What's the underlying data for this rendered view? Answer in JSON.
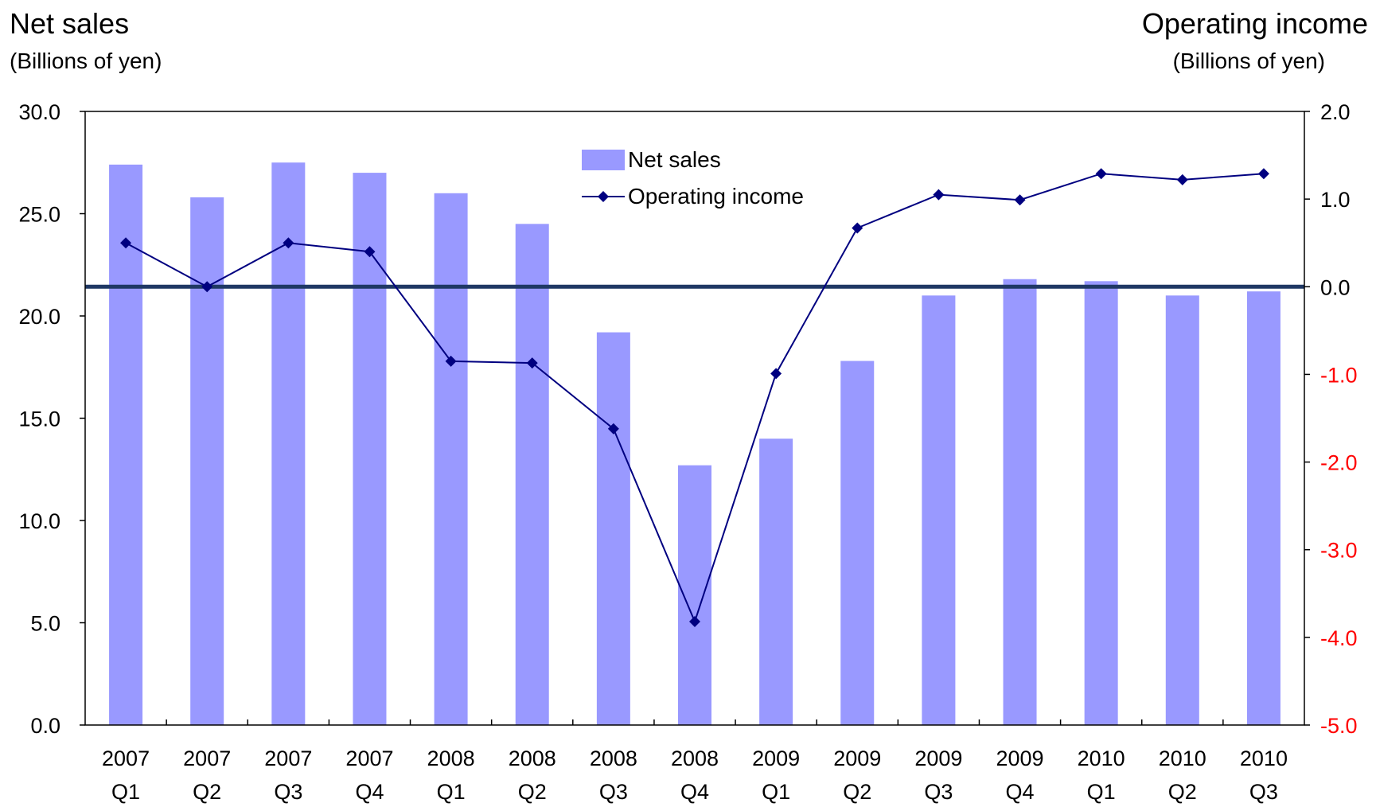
{
  "chart_data": {
    "type": "bar",
    "left_title": "Net sales",
    "left_unit": "(Billions of yen)",
    "right_title": "Operating income",
    "right_unit": "(Billions of yen)",
    "categories": [
      [
        "2007",
        "Q1"
      ],
      [
        "2007",
        "Q2"
      ],
      [
        "2007",
        "Q3"
      ],
      [
        "2007",
        "Q4"
      ],
      [
        "2008",
        "Q1"
      ],
      [
        "2008",
        "Q2"
      ],
      [
        "2008",
        "Q3"
      ],
      [
        "2008",
        "Q4"
      ],
      [
        "2009",
        "Q1"
      ],
      [
        "2009",
        "Q2"
      ],
      [
        "2009",
        "Q3"
      ],
      [
        "2009",
        "Q4"
      ],
      [
        "2010",
        "Q1"
      ],
      [
        "2010",
        "Q2"
      ],
      [
        "2010",
        "Q3"
      ]
    ],
    "series": [
      {
        "name": "Net sales",
        "type": "bar",
        "axis": "left",
        "color": "#9999ff",
        "values": [
          27.4,
          25.8,
          27.5,
          27.0,
          26.0,
          24.5,
          19.2,
          12.7,
          14.0,
          17.8,
          21.0,
          21.8,
          21.7,
          21.0,
          21.2
        ]
      },
      {
        "name": "Operating income",
        "type": "line",
        "axis": "right",
        "color": "#000080",
        "values": [
          0.5,
          0.0,
          0.5,
          0.4,
          -0.85,
          -0.87,
          -1.62,
          -3.82,
          -0.99,
          0.67,
          1.05,
          0.99,
          1.29,
          1.22,
          1.29
        ]
      }
    ],
    "left_axis": {
      "ylim": [
        0,
        30
      ],
      "ticks": [
        "0.0",
        "5.0",
        "10.0",
        "15.0",
        "20.0",
        "25.0",
        "30.0"
      ],
      "tick_color": "#000000"
    },
    "right_axis": {
      "ylim": [
        -5,
        2
      ],
      "ticks": [
        "-5.0",
        "-4.0",
        "-3.0",
        "-2.0",
        "-1.0",
        "0.0",
        "1.0",
        "2.0"
      ],
      "positive_tick_color": "#000000",
      "negative_tick_color": "#ff0000"
    },
    "zero_line": {
      "axis": "right",
      "value": 0,
      "color": "#1f3864"
    },
    "legend": {
      "placement": "top-center"
    },
    "grid": false
  }
}
